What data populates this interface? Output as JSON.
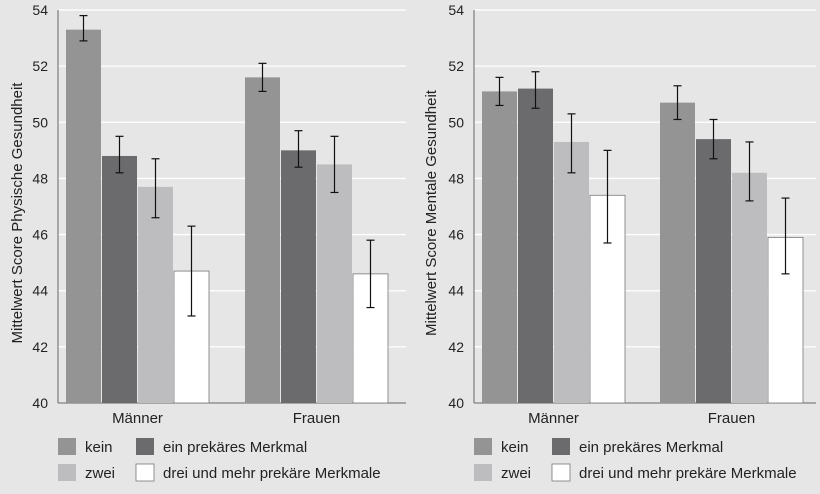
{
  "colors": {
    "background": "#e6e6e6",
    "plot_background": "#e6e6e6",
    "gridline": "#ffffff",
    "kein": "#949494",
    "ein_prekaeres_merkmal": "#6b6b6d",
    "zwei": "#bdbdbf",
    "drei_und_mehr": "#ffffff"
  },
  "legend": {
    "items": [
      {
        "label": "kein",
        "color": "#949494"
      },
      {
        "label": "ein prekäres Merkmal",
        "color": "#6b6b6d"
      },
      {
        "label": "zwei",
        "color": "#bdbdbf"
      },
      {
        "label": "drei und mehr prekäre Merkmale",
        "color": "#ffffff"
      }
    ]
  },
  "chart_data": [
    {
      "type": "bar",
      "title": "",
      "xlabel": "",
      "ylabel": "Mittelwert Score Physische Gesundheit",
      "ylim": [
        40,
        54
      ],
      "yticks": [
        40,
        42,
        44,
        46,
        48,
        50,
        52,
        54
      ],
      "grid": "horizontal",
      "legend_placement": "bottom",
      "categories": [
        "Männer",
        "Frauen"
      ],
      "series": [
        {
          "name": "kein",
          "values": [
            53.3,
            51.6
          ],
          "err_low": [
            52.9,
            51.1
          ],
          "err_high": [
            53.8,
            52.1
          ]
        },
        {
          "name": "ein prekäres Merkmal",
          "values": [
            48.8,
            49.0
          ],
          "err_low": [
            48.2,
            48.4
          ],
          "err_high": [
            49.5,
            49.7
          ]
        },
        {
          "name": "zwei",
          "values": [
            47.7,
            48.5
          ],
          "err_low": [
            46.6,
            47.5
          ],
          "err_high": [
            48.7,
            49.5
          ]
        },
        {
          "name": "drei und mehr prekäre Merkmale",
          "values": [
            44.7,
            44.6
          ],
          "err_low": [
            43.1,
            43.4
          ],
          "err_high": [
            46.3,
            45.8
          ]
        }
      ]
    },
    {
      "type": "bar",
      "title": "",
      "xlabel": "",
      "ylabel": "Mittelwert Score Mentale Gesundheit",
      "ylim": [
        40,
        54
      ],
      "yticks": [
        40,
        42,
        44,
        46,
        48,
        50,
        52,
        54
      ],
      "grid": "horizontal",
      "legend_placement": "bottom",
      "categories": [
        "Männer",
        "Frauen"
      ],
      "series": [
        {
          "name": "kein",
          "values": [
            51.1,
            50.7
          ],
          "err_low": [
            50.6,
            50.1
          ],
          "err_high": [
            51.6,
            51.3
          ]
        },
        {
          "name": "ein prekäres Merkmal",
          "values": [
            51.2,
            49.4
          ],
          "err_low": [
            50.5,
            48.7
          ],
          "err_high": [
            51.8,
            50.1
          ]
        },
        {
          "name": "zwei",
          "values": [
            49.3,
            48.2
          ],
          "err_low": [
            48.2,
            47.2
          ],
          "err_high": [
            50.3,
            49.3
          ]
        },
        {
          "name": "drei und mehr prekäre Merkmale",
          "values": [
            47.4,
            45.9
          ],
          "err_low": [
            45.7,
            44.6
          ],
          "err_high": [
            49.0,
            47.3
          ]
        }
      ]
    }
  ]
}
